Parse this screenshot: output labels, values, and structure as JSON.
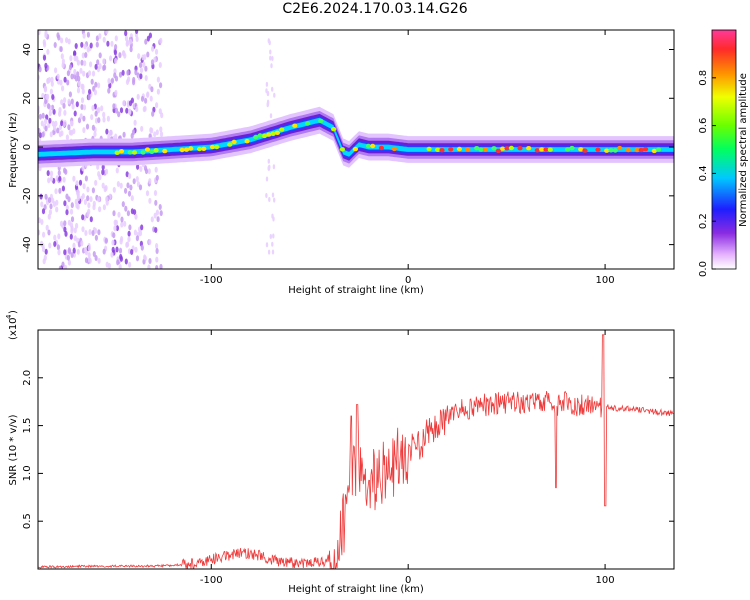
{
  "title": "C2E6.2024.170.03.14.G26",
  "chart_data": [
    {
      "type": "heatmap",
      "title": "C2E6.2024.170.03.14.G26",
      "xlabel": "Height of straight line (km)",
      "ylabel": "Frequency (Hz)",
      "xlim": [
        -188,
        135
      ],
      "ylim": [
        -50,
        48
      ],
      "xticks": [
        -100,
        0,
        100
      ],
      "yticks": [
        -40,
        -20,
        0,
        20,
        40
      ],
      "colorbar": {
        "label": "Normalized spectral amplitude",
        "range": [
          0,
          1
        ],
        "ticks": [
          "0.0",
          "0.2",
          "0.4",
          "0.6",
          "0.8"
        ],
        "colormap": "rainbow (white-violet-blue-cyan-green-yellow-red)"
      },
      "ridge": {
        "x": [
          -188,
          -160,
          -140,
          -120,
          -100,
          -80,
          -60,
          -45,
          -38,
          -33,
          -30,
          -25,
          -20,
          -10,
          0,
          50,
          100,
          135
        ],
        "frequency_hz": [
          -3,
          -2,
          -2,
          -1,
          0,
          3,
          8,
          11,
          8,
          -2,
          -3,
          1,
          0,
          0,
          -1,
          -1,
          -1,
          -1
        ]
      },
      "noise_region_x": [
        -188,
        -125
      ],
      "grid": false
    },
    {
      "type": "line",
      "xlabel": "Height of straight line (km)",
      "ylabel": "SNR (10 * v/v)",
      "scale_label": "(x10",
      "scale_exponent": "4",
      "xlim": [
        -188,
        135
      ],
      "ylim": [
        0,
        2.5
      ],
      "xticks": [
        -100,
        0,
        100
      ],
      "yticks": [
        0.5,
        1.0,
        1.5,
        2.0
      ],
      "ytick_labels": [
        "0.5",
        "1.0",
        "1.5",
        "2.0"
      ],
      "color": "#ee3a3a",
      "series": [
        {
          "x": [
            -188,
            -160,
            -130,
            -110,
            -95,
            -85,
            -75,
            -65,
            -55,
            -45,
            -38,
            -33,
            -30,
            -26,
            -22,
            -18,
            -14,
            -10,
            -5,
            0,
            5,
            10,
            15,
            20,
            25,
            30,
            35,
            40,
            50,
            60,
            70,
            75,
            80,
            90,
            95,
            98,
            100,
            102,
            110,
            120,
            135
          ],
          "values": [
            0.02,
            0.03,
            0.03,
            0.05,
            0.12,
            0.18,
            0.14,
            0.08,
            0.05,
            0.08,
            0.1,
            0.45,
            0.9,
            1.05,
            0.85,
            0.95,
            1.0,
            1.05,
            1.15,
            1.2,
            1.3,
            1.4,
            1.5,
            1.6,
            1.65,
            1.68,
            1.7,
            1.72,
            1.74,
            1.75,
            1.76,
            1.72,
            1.74,
            1.7,
            1.74,
            1.7,
            1.75,
            1.68,
            1.68,
            1.66,
            1.62
          ],
          "spikes": [
            {
              "x": -26,
              "value": 1.72
            },
            {
              "x": -29,
              "value": 1.6
            },
            {
              "x": 75,
              "value": 0.85
            },
            {
              "x": 99,
              "value": 2.45
            },
            {
              "x": 100,
              "value": 0.66
            }
          ]
        }
      ],
      "grid": false
    }
  ]
}
